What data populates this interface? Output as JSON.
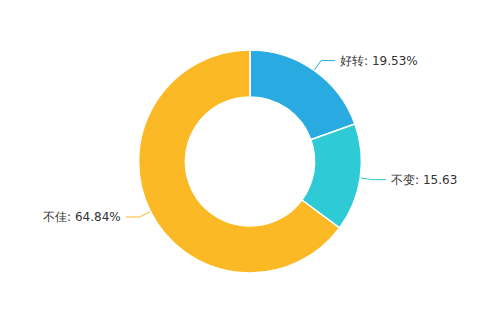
{
  "chart_data": {
    "type": "pie",
    "values": [
      19.53,
      15.63,
      64.84
    ],
    "value_labels": [
      "好转: 19.53%",
      "不变: 15.63",
      "不佳: 64.84%"
    ],
    "colors": [
      "#29ABE2",
      "#2ECAD5",
      "#FBBA25"
    ],
    "data_labels": true
  }
}
